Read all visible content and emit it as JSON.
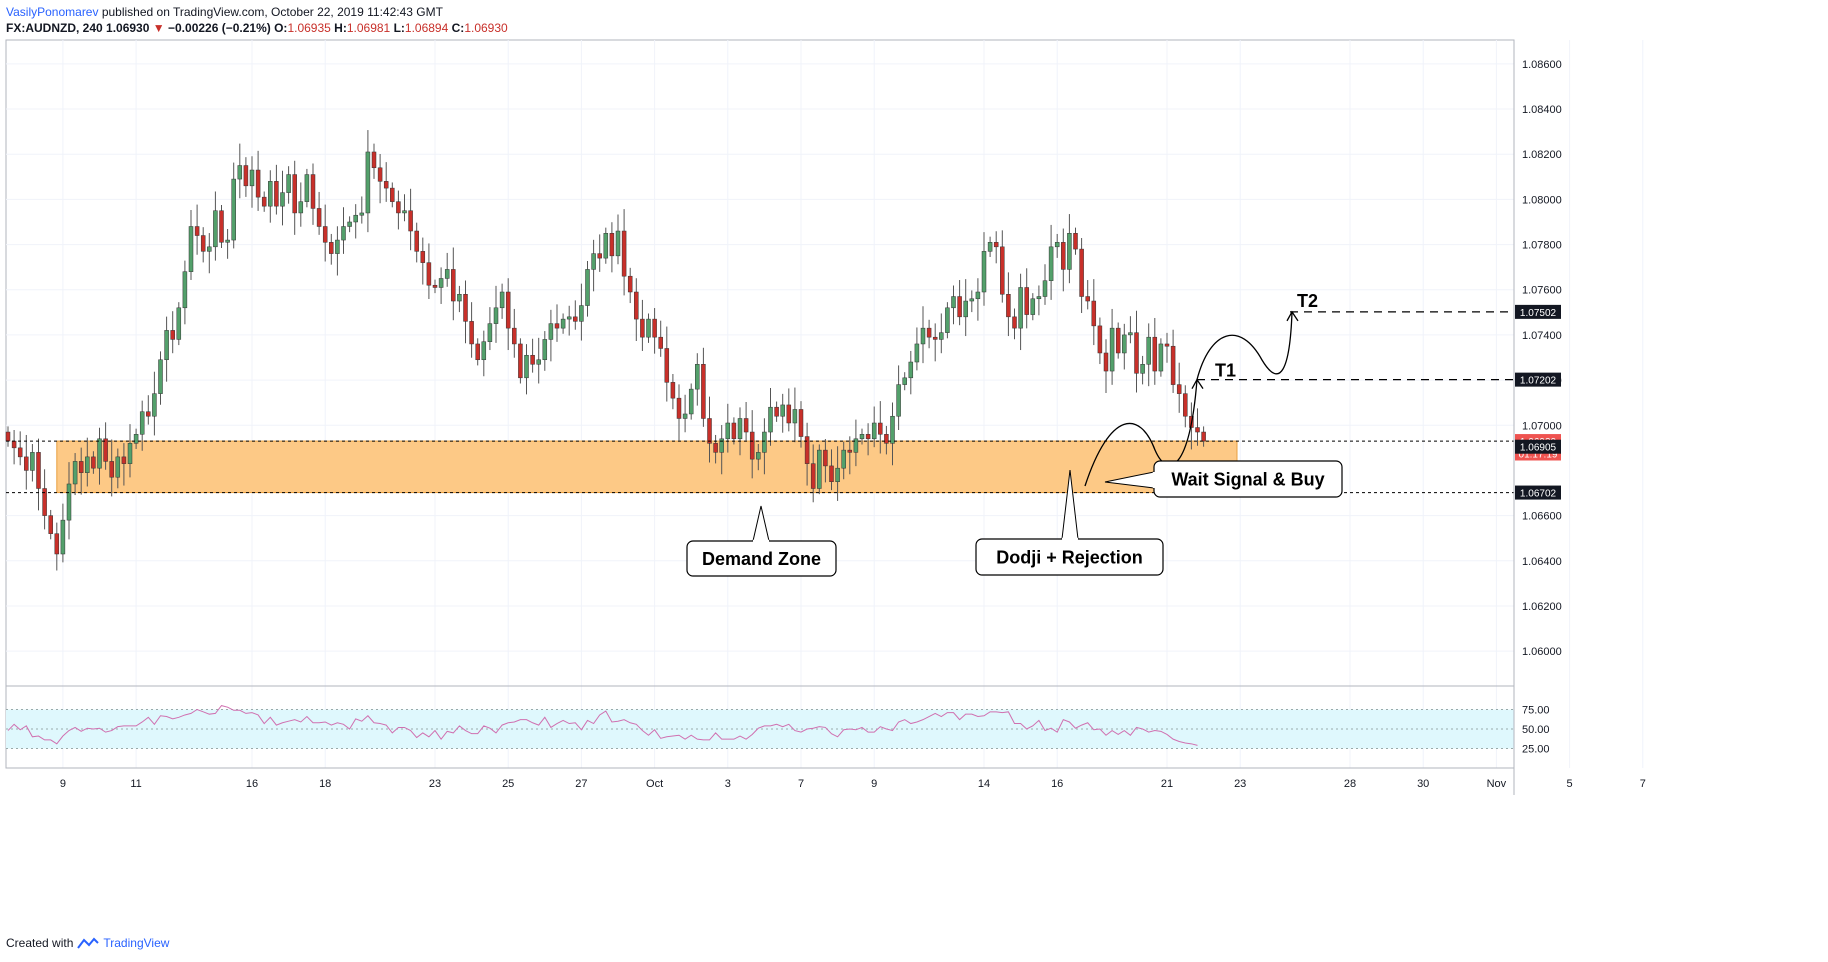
{
  "header": {
    "author": "VasilyPonomarev",
    "published": "published on TradingView.com, October 22, 2019 11:42:43 GMT",
    "symbol": "FX:AUDNZD, 240",
    "last": "1.06930",
    "change": "−0.00226 (−0.21%)",
    "open_label": "O:",
    "open": "1.06935",
    "high_label": "H:",
    "high": "1.06981",
    "low_label": "L:",
    "low": "1.06894",
    "close_label": "C:",
    "close": "1.06930"
  },
  "footer": {
    "created_with": "Created with",
    "brand": "TradingView"
  },
  "colors": {
    "up": "#53a06b",
    "down": "#c8302a",
    "zone": "#fdc986",
    "rsi_band": "#dff8fd",
    "rsi_line": "#d070b0",
    "grid": "#f0f3fa"
  },
  "chart_data": {
    "type": "candlestick",
    "symbol": "FX:AUDNZD",
    "timeframe": "240",
    "ylim": [
      1.0585,
      1.0875
    ],
    "y_ticks": [
      "1.08600",
      "1.08400",
      "1.08200",
      "1.08000",
      "1.07800",
      "1.07600",
      "1.07400",
      "1.07200",
      "1.07000",
      "1.06600",
      "1.06400",
      "1.06200",
      "1.06000"
    ],
    "x_ticks": [
      {
        "label": "9",
        "i": 9
      },
      {
        "label": "11",
        "i": 21
      },
      {
        "label": "16",
        "i": 40
      },
      {
        "label": "18",
        "i": 52
      },
      {
        "label": "23",
        "i": 70
      },
      {
        "label": "25",
        "i": 82
      },
      {
        "label": "27",
        "i": 94
      },
      {
        "label": "Oct",
        "i": 106
      },
      {
        "label": "3",
        "i": 118
      },
      {
        "label": "7",
        "i": 130
      },
      {
        "label": "9",
        "i": 142
      },
      {
        "label": "14",
        "i": 160
      },
      {
        "label": "16",
        "i": 172
      },
      {
        "label": "21",
        "i": 190
      },
      {
        "label": "23",
        "i": 202
      },
      {
        "label": "28",
        "i": 220
      },
      {
        "label": "30",
        "i": 232
      },
      {
        "label": "Nov",
        "i": 244
      },
      {
        "label": "5",
        "i": 256
      },
      {
        "label": "7",
        "i": 268
      }
    ],
    "closes": [
      1.0693,
      1.069,
      1.0686,
      1.068,
      1.0688,
      1.0672,
      1.066,
      1.0652,
      1.0643,
      1.0658,
      1.0674,
      1.0684,
      1.0679,
      1.0686,
      1.0681,
      1.0694,
      1.0684,
      1.0677,
      1.0686,
      1.0683,
      1.0692,
      1.0696,
      1.0706,
      1.0704,
      1.0714,
      1.0729,
      1.0742,
      1.0738,
      1.0752,
      1.0768,
      1.0788,
      1.0784,
      1.0777,
      1.0779,
      1.0795,
      1.0781,
      1.0782,
      1.0809,
      1.0815,
      1.0806,
      1.0813,
      1.0801,
      1.0797,
      1.0808,
      1.0797,
      1.0803,
      1.0811,
      1.0794,
      1.0799,
      1.0811,
      1.0796,
      1.0788,
      1.0781,
      1.0776,
      1.0782,
      1.0788,
      1.079,
      1.0793,
      1.0794,
      1.0821,
      1.0814,
      1.0808,
      1.0805,
      1.0799,
      1.0794,
      1.0795,
      1.0786,
      1.0777,
      1.0772,
      1.0762,
      1.0761,
      1.0765,
      1.0769,
      1.0755,
      1.0758,
      1.0746,
      1.0736,
      1.0729,
      1.0737,
      1.0745,
      1.0752,
      1.0759,
      1.0743,
      1.0736,
      1.0721,
      1.0731,
      1.0727,
      1.0729,
      1.0738,
      1.0745,
      1.0743,
      1.0747,
      1.0748,
      1.0746,
      1.0753,
      1.0769,
      1.0776,
      1.0774,
      1.0785,
      1.0775,
      1.0786,
      1.0766,
      1.0759,
      1.0747,
      1.0739,
      1.0747,
      1.0739,
      1.0734,
      1.0719,
      1.0712,
      1.0703,
      1.0705,
      1.0716,
      1.0727,
      1.0703,
      1.0692,
      1.0688,
      1.0694,
      1.0701,
      1.0694,
      1.0703,
      1.0697,
      1.0685,
      1.0688,
      1.0697,
      1.0708,
      1.0704,
      1.0709,
      1.0701,
      1.0707,
      1.0695,
      1.0683,
      1.0672,
      1.0689,
      1.0682,
      1.0675,
      1.0681,
      1.0689,
      1.0688,
      1.0694,
      1.0696,
      1.0694,
      1.0701,
      1.0696,
      1.0692,
      1.0704,
      1.0718,
      1.0721,
      1.0728,
      1.0736,
      1.0743,
      1.0739,
      1.0738,
      1.0741,
      1.0752,
      1.0757,
      1.0748,
      1.0755,
      1.0756,
      1.0759,
      1.0777,
      1.0781,
      1.0779,
      1.0758,
      1.0748,
      1.0743,
      1.0761,
      1.0749,
      1.0756,
      1.0757,
      1.0764,
      1.0779,
      1.0781,
      1.0769,
      1.0785,
      1.0778,
      1.0757,
      1.0755,
      1.0744,
      1.0732,
      1.0724,
      1.0743,
      1.0732,
      1.074,
      1.0741,
      1.0723,
      1.0727,
      1.0739,
      1.0724,
      1.0736,
      1.0735,
      1.0718,
      1.0714,
      1.0704,
      1.0699,
      1.0697,
      1.0693
    ],
    "rsi": {
      "levels": [
        75.0,
        50.0,
        25.0
      ],
      "tick_labels": [
        "75.00",
        "50.00",
        "25.00"
      ],
      "values": [
        48,
        56,
        49,
        54,
        40,
        41,
        36,
        36,
        31,
        41,
        48,
        52,
        47,
        51,
        50,
        51,
        46,
        48,
        53,
        54,
        54,
        54,
        59,
        65,
        56,
        67,
        66,
        63,
        65,
        68,
        70,
        75,
        72,
        69,
        70,
        80,
        78,
        74,
        74,
        70,
        71,
        68,
        57,
        65,
        55,
        58,
        60,
        62,
        59,
        66,
        58,
        58,
        59,
        55,
        58,
        56,
        50,
        63,
        60,
        67,
        58,
        57,
        55,
        45,
        52,
        52,
        48,
        39,
        45,
        40,
        48,
        37,
        47,
        45,
        54,
        48,
        44,
        44,
        54,
        51,
        45,
        55,
        58,
        59,
        62,
        62,
        58,
        55,
        65,
        52,
        57,
        61,
        57,
        58,
        49,
        61,
        57,
        68,
        73,
        59,
        60,
        62,
        58,
        56,
        48,
        42,
        49,
        38,
        40,
        41,
        42,
        37,
        42,
        37,
        36,
        36,
        45,
        37,
        37,
        37,
        41,
        37,
        43,
        51,
        54,
        54,
        56,
        53,
        56,
        48,
        46,
        50,
        51,
        53,
        52,
        44,
        40,
        49,
        50,
        49,
        52,
        46,
        46,
        53,
        50,
        48,
        59,
        62,
        57,
        59,
        62,
        66,
        70,
        66,
        71,
        71,
        62,
        69,
        69,
        66,
        67,
        72,
        72,
        71,
        72,
        57,
        57,
        50,
        54,
        61,
        48,
        51,
        46,
        62,
        59,
        51,
        55,
        58,
        49,
        50,
        42,
        48,
        43,
        48,
        42,
        52,
        50,
        46,
        48,
        47,
        43,
        37,
        34,
        32,
        31,
        29
      ]
    },
    "zone": {
      "top": 1.0693,
      "bottom": 1.06702,
      "label": "Demand Zone"
    },
    "price_labels": [
      {
        "text": "1.07502",
        "value": 1.07502
      },
      {
        "text": "1.07202",
        "value": 1.07202
      },
      {
        "text": "1.06930",
        "value": 1.0693
      },
      {
        "text": "01:17:19",
        "value": 1.06875
      },
      {
        "text": "1.06905",
        "value": 1.06905
      },
      {
        "text": "1.06702",
        "value": 1.06702
      }
    ],
    "targets": [
      {
        "label": "T1",
        "value": 1.07202
      },
      {
        "label": "T2",
        "value": 1.07502
      }
    ],
    "annotations": [
      "Demand Zone",
      "Dodji + Rejection",
      "Wait Signal & Buy"
    ],
    "grid": true
  }
}
